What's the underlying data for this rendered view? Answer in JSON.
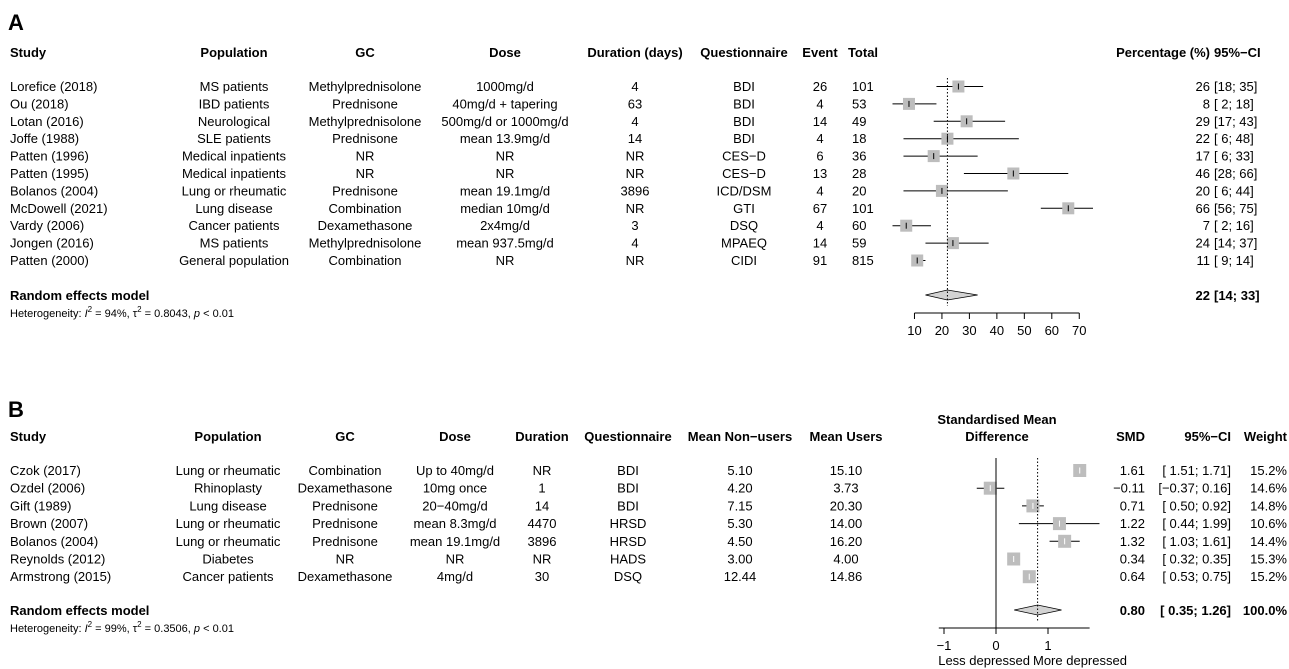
{
  "chart_data": [
    {
      "type": "forest",
      "panel_label": "A",
      "columns": [
        "Study",
        "Population",
        "GC",
        "Dose",
        "Duration (days)",
        "Questionnaire",
        "Event",
        "Total"
      ],
      "right_columns": [
        "Percentage (%)",
        "95%−CI"
      ],
      "rows": [
        {
          "study": "Lorefice (2018)",
          "population": "MS patients",
          "gc": "Methylprednisolone",
          "dose": "1000mg/d",
          "duration": "4",
          "questionnaire": "BDI",
          "event": "26",
          "total": "101",
          "estimate": 26,
          "ci_low": 18,
          "ci_high": 35,
          "pct_text": "26",
          "ci_text": "[18; 35]"
        },
        {
          "study": "Ou (2018)",
          "population": "IBD patients",
          "gc": "Prednisone",
          "dose": "40mg/d + tapering",
          "duration": "63",
          "questionnaire": "BDI",
          "event": "4",
          "total": "53",
          "estimate": 8,
          "ci_low": 2,
          "ci_high": 18,
          "pct_text": "8",
          "ci_text": "[ 2; 18]"
        },
        {
          "study": "Lotan (2016)",
          "population": "Neurological",
          "gc": "Methylprednisolone",
          "dose": "500mg/d or 1000mg/d",
          "duration": "4",
          "questionnaire": "BDI",
          "event": "14",
          "total": "49",
          "estimate": 29,
          "ci_low": 17,
          "ci_high": 43,
          "pct_text": "29",
          "ci_text": "[17; 43]"
        },
        {
          "study": "Joffe (1988)",
          "population": "SLE patients",
          "gc": "Prednisone",
          "dose": "mean 13.9mg/d",
          "duration": "14",
          "questionnaire": "BDI",
          "event": "4",
          "total": "18",
          "estimate": 22,
          "ci_low": 6,
          "ci_high": 48,
          "pct_text": "22",
          "ci_text": "[ 6; 48]"
        },
        {
          "study": "Patten (1996)",
          "population": "Medical inpatients",
          "gc": "NR",
          "dose": "NR",
          "duration": "NR",
          "questionnaire": "CES−D",
          "event": "6",
          "total": "36",
          "estimate": 17,
          "ci_low": 6,
          "ci_high": 33,
          "pct_text": "17",
          "ci_text": "[ 6; 33]"
        },
        {
          "study": "Patten (1995)",
          "population": "Medical inpatients",
          "gc": "NR",
          "dose": "NR",
          "duration": "NR",
          "questionnaire": "CES−D",
          "event": "13",
          "total": "28",
          "estimate": 46,
          "ci_low": 28,
          "ci_high": 66,
          "pct_text": "46",
          "ci_text": "[28; 66]"
        },
        {
          "study": "Bolanos (2004)",
          "population": "Lung or rheumatic",
          "gc": "Prednisone",
          "dose": "mean 19.1mg/d",
          "duration": "3896",
          "questionnaire": "ICD/DSM",
          "event": "4",
          "total": "20",
          "estimate": 20,
          "ci_low": 6,
          "ci_high": 44,
          "pct_text": "20",
          "ci_text": "[ 6; 44]"
        },
        {
          "study": "McDowell (2021)",
          "population": "Lung disease",
          "gc": "Combination",
          "dose": "median 10mg/d",
          "duration": "NR",
          "questionnaire": "GTI",
          "event": "67",
          "total": "101",
          "estimate": 66,
          "ci_low": 56,
          "ci_high": 75,
          "pct_text": "66",
          "ci_text": "[56; 75]"
        },
        {
          "study": "Vardy (2006)",
          "population": "Cancer patients",
          "gc": "Dexamethasone",
          "dose": "2x4mg/d",
          "duration": "3",
          "questionnaire": "DSQ",
          "event": "4",
          "total": "60",
          "estimate": 7,
          "ci_low": 2,
          "ci_high": 16,
          "pct_text": "7",
          "ci_text": "[ 2; 16]"
        },
        {
          "study": "Jongen (2016)",
          "population": "MS patients",
          "gc": "Methylprednisolone",
          "dose": "mean 937.5mg/d",
          "duration": "4",
          "questionnaire": "MPAEQ",
          "event": "14",
          "total": "59",
          "estimate": 24,
          "ci_low": 14,
          "ci_high": 37,
          "pct_text": "24",
          "ci_text": "[14; 37]"
        },
        {
          "study": "Patten (2000)",
          "population": "General population",
          "gc": "Combination",
          "dose": "NR",
          "duration": "NR",
          "questionnaire": "CIDI",
          "event": "91",
          "total": "815",
          "estimate": 11,
          "ci_low": 9,
          "ci_high": 14,
          "pct_text": "11",
          "ci_text": "[ 9; 14]"
        }
      ],
      "summary": {
        "label": "Random effects model",
        "estimate": 22,
        "ci_low": 14,
        "ci_high": 33,
        "pct_text": "22",
        "ci_text": "[14; 33]"
      },
      "heterogeneity": {
        "prefix": "Heterogeneity: ",
        "i2": "94%",
        "tau2": "0.8043",
        "p": "p < 0.01"
      },
      "x_axis": {
        "ticks": [
          10,
          20,
          30,
          40,
          50,
          60,
          70
        ],
        "range": [
          0,
          75
        ],
        "reference_line": 22
      }
    },
    {
      "type": "forest",
      "panel_label": "B",
      "columns": [
        "Study",
        "Population",
        "GC",
        "Dose",
        "Duration",
        "Questionnaire",
        "Mean Non−users",
        "Mean Users"
      ],
      "effect_header": [
        "Standardised Mean",
        "Difference"
      ],
      "right_columns": [
        "SMD",
        "95%−CI",
        "Weight"
      ],
      "rows": [
        {
          "study": "Czok (2017)",
          "population": "Lung or rheumatic",
          "gc": "Combination",
          "dose": "Up to 40mg/d",
          "duration": "NR",
          "questionnaire": "BDI",
          "mean_non_users": "5.10",
          "mean_users": "15.10",
          "estimate": 1.61,
          "ci_low": 1.51,
          "ci_high": 1.71,
          "smd_text": "1.61",
          "ci_text": "[ 1.51; 1.71]",
          "weight": "15.2%"
        },
        {
          "study": "Ozdel (2006)",
          "population": "Rhinoplasty",
          "gc": "Dexamethasone",
          "dose": "10mg once",
          "duration": "1",
          "questionnaire": "BDI",
          "mean_non_users": "4.20",
          "mean_users": "3.73",
          "estimate": -0.11,
          "ci_low": -0.37,
          "ci_high": 0.16,
          "smd_text": "−0.11",
          "ci_text": "[−0.37; 0.16]",
          "weight": "14.6%"
        },
        {
          "study": "Gift (1989)",
          "population": "Lung disease",
          "gc": "Prednisone",
          "dose": "20−40mg/d",
          "duration": "14",
          "questionnaire": "BDI",
          "mean_non_users": "7.15",
          "mean_users": "20.30",
          "estimate": 0.71,
          "ci_low": 0.5,
          "ci_high": 0.92,
          "smd_text": "0.71",
          "ci_text": "[ 0.50; 0.92]",
          "weight": "14.8%"
        },
        {
          "study": "Brown (2007)",
          "population": "Lung or rheumatic",
          "gc": "Prednisone",
          "dose": "mean 8.3mg/d",
          "duration": "4470",
          "questionnaire": "HRSD",
          "mean_non_users": "5.30",
          "mean_users": "14.00",
          "estimate": 1.22,
          "ci_low": 0.44,
          "ci_high": 1.99,
          "smd_text": "1.22",
          "ci_text": "[ 0.44; 1.99]",
          "weight": "10.6%"
        },
        {
          "study": "Bolanos (2004)",
          "population": "Lung or rheumatic",
          "gc": "Prednisone",
          "dose": "mean 19.1mg/d",
          "duration": "3896",
          "questionnaire": "HRSD",
          "mean_non_users": "4.50",
          "mean_users": "16.20",
          "estimate": 1.32,
          "ci_low": 1.03,
          "ci_high": 1.61,
          "smd_text": "1.32",
          "ci_text": "[ 1.03; 1.61]",
          "weight": "14.4%"
        },
        {
          "study": "Reynolds (2012)",
          "population": "Diabetes",
          "gc": "NR",
          "dose": "NR",
          "duration": "NR",
          "questionnaire": "HADS",
          "mean_non_users": "3.00",
          "mean_users": "4.00",
          "estimate": 0.34,
          "ci_low": 0.32,
          "ci_high": 0.35,
          "smd_text": "0.34",
          "ci_text": "[ 0.32; 0.35]",
          "weight": "15.3%"
        },
        {
          "study": "Armstrong (2015)",
          "population": "Cancer patients",
          "gc": "Dexamethasone",
          "dose": "4mg/d",
          "duration": "30",
          "questionnaire": "DSQ",
          "mean_non_users": "12.44",
          "mean_users": "14.86",
          "estimate": 0.64,
          "ci_low": 0.53,
          "ci_high": 0.75,
          "smd_text": "0.64",
          "ci_text": "[ 0.53; 0.75]",
          "weight": "15.2%"
        }
      ],
      "summary": {
        "label": "Random effects model",
        "estimate": 0.8,
        "ci_low": 0.35,
        "ci_high": 1.26,
        "smd_text": "0.80",
        "ci_text": "[ 0.35; 1.26]",
        "weight": "100.0%"
      },
      "heterogeneity": {
        "prefix": "Heterogeneity: ",
        "i2": "99%",
        "tau2": "0.3506",
        "p": "p < 0.01"
      },
      "x_axis": {
        "ticks": [
          -1,
          0,
          1
        ],
        "tick_labels": [
          "−1",
          "0",
          "1"
        ],
        "range": [
          -1.1,
          1.8
        ],
        "null_line": 0,
        "reference_line": 0.8,
        "left_label": "Less depressed",
        "right_label": "More depressed"
      }
    }
  ]
}
